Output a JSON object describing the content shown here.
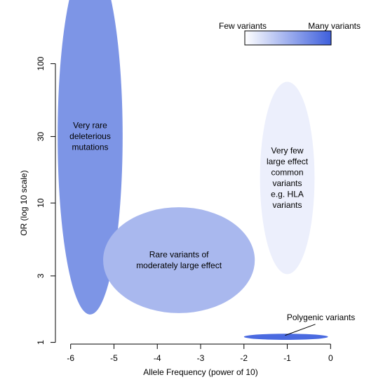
{
  "chart_data": {
    "type": "scatter",
    "title": "",
    "xlabel": "Allele Frequency (power of 10)",
    "ylabel": "OR (log 10 scale)",
    "y_scale": "log10",
    "xlim": [
      -6.4,
      0.4
    ],
    "ylim": [
      0.95,
      180
    ],
    "x_ticks": [
      -6,
      -5,
      -4,
      -3,
      -2,
      -1,
      0
    ],
    "y_ticks": [
      1,
      3,
      10,
      30,
      100
    ],
    "grid": false,
    "legend": {
      "position": "top-right",
      "type": "gradient",
      "low_label": "Few variants",
      "high_label": "Many variants",
      "low_color": "#ffffff",
      "high_color": "#3e5fdc"
    },
    "regions": [
      {
        "id": "very-rare",
        "lines": [
          "Very rare",
          "deleterious",
          "mutations"
        ],
        "x_center": -5.55,
        "x_halfwidth": 0.75,
        "log10_y_center": 1.48,
        "log10_y_halfheight": 1.28,
        "color": "#7d95e6"
      },
      {
        "id": "rare-moderate",
        "lines": [
          "Rare variants of",
          "moderately large effect"
        ],
        "x_center": -3.5,
        "x_halfwidth": 1.75,
        "log10_y_center": 0.59,
        "log10_y_halfheight": 0.38,
        "color": "#a9b8ee"
      },
      {
        "id": "few-common",
        "lines": [
          "Very few",
          "large effect",
          "common",
          "variants",
          "e.g. HLA",
          "variants"
        ],
        "x_center": -1.0,
        "x_halfwidth": 0.63,
        "log10_y_center": 1.18,
        "log10_y_halfheight": 0.69,
        "color": "#eceffc"
      },
      {
        "id": "polygenic",
        "lines": [],
        "x_center": -1.03,
        "x_halfwidth": 0.97,
        "log10_y_center": 0.04,
        "log10_y_halfheight": 0.022,
        "color": "#4a6ae0"
      }
    ],
    "annotations": [
      {
        "text": "Polygenic variants",
        "x": -1.0,
        "log10_y": 0.16,
        "arrow_to_x": -1.05,
        "arrow_to_log10_y": 0.05
      }
    ]
  }
}
